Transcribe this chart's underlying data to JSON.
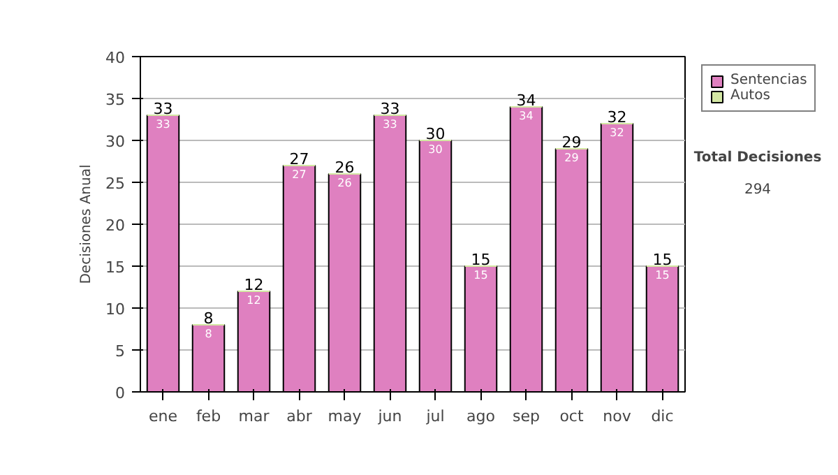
{
  "chart_data": {
    "type": "bar",
    "stacked": true,
    "ylabel": "Decisiones Anual",
    "categories": [
      "ene",
      "feb",
      "mar",
      "abr",
      "may",
      "jun",
      "jul",
      "ago",
      "sep",
      "oct",
      "nov",
      "dic"
    ],
    "series": [
      {
        "name": "Sentencias",
        "color": "#df80c0",
        "values": [
          33,
          8,
          12,
          27,
          26,
          33,
          30,
          15,
          34,
          29,
          32,
          15
        ],
        "value_labels": [
          "33",
          "8",
          "12",
          "27",
          "26",
          "33",
          "30",
          "15",
          "34",
          "29",
          "32",
          "15"
        ]
      },
      {
        "name": "Autos",
        "color": "#d4e8a4",
        "values": [
          0,
          0,
          0,
          0,
          0,
          0,
          0,
          0,
          0,
          0,
          0,
          0
        ]
      }
    ],
    "totals": [
      "33",
      "8",
      "12",
      "27",
      "26",
      "33",
      "30",
      "15",
      "34",
      "29",
      "32",
      "15"
    ],
    "ylim": [
      0,
      40
    ],
    "yticks": [
      0,
      5,
      10,
      15,
      20,
      25,
      30,
      35,
      40
    ],
    "grid": "y",
    "legend": "right",
    "annotations": [
      "Total Decisiones",
      "294"
    ]
  }
}
